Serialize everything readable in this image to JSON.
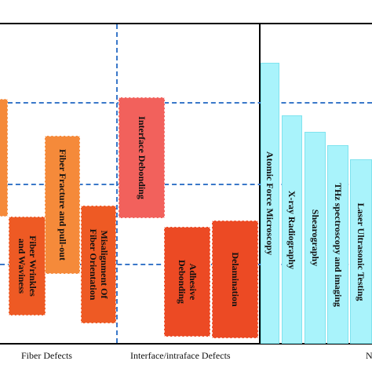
{
  "groups": {
    "fiber": "Fiber Defects",
    "interface": "Interface/intraface Defects",
    "third_partial": "N"
  },
  "defects": [
    {
      "id": "fiber-wrinkles",
      "label": "Fiber Wrinkles\nand Waviness",
      "color": "#ee5a24"
    },
    {
      "id": "fiber-fracture",
      "label": "Fiber Fracture and pull-out",
      "color": "#f58a3a"
    },
    {
      "id": "misalignment",
      "label": "Misalignment Of\nFiber Orientation",
      "color": "#ee5a24"
    },
    {
      "id": "interface-debonding",
      "label": "Interface Debonding",
      "color": "#f2615c"
    },
    {
      "id": "adhesive-debonding",
      "label": "Adhesive\nDebonding",
      "color": "#ec4a24"
    },
    {
      "id": "delamination",
      "label": "Delamination",
      "color": "#ec4a24"
    }
  ],
  "methods": [
    {
      "id": "afm",
      "label": "Atomic Force Microscopy"
    },
    {
      "id": "xray",
      "label": "X-ray Radiography"
    },
    {
      "id": "shearography",
      "label": "Shearography"
    },
    {
      "id": "thz",
      "label": "THz spectroscopy and imaging"
    },
    {
      "id": "laser",
      "label": "Laser Ultrasonic Testing"
    }
  ],
  "colors": {
    "edge_box": "#f58a3a",
    "method_bar": "#a9f3fb",
    "grid_dash": "#3a78c9"
  }
}
